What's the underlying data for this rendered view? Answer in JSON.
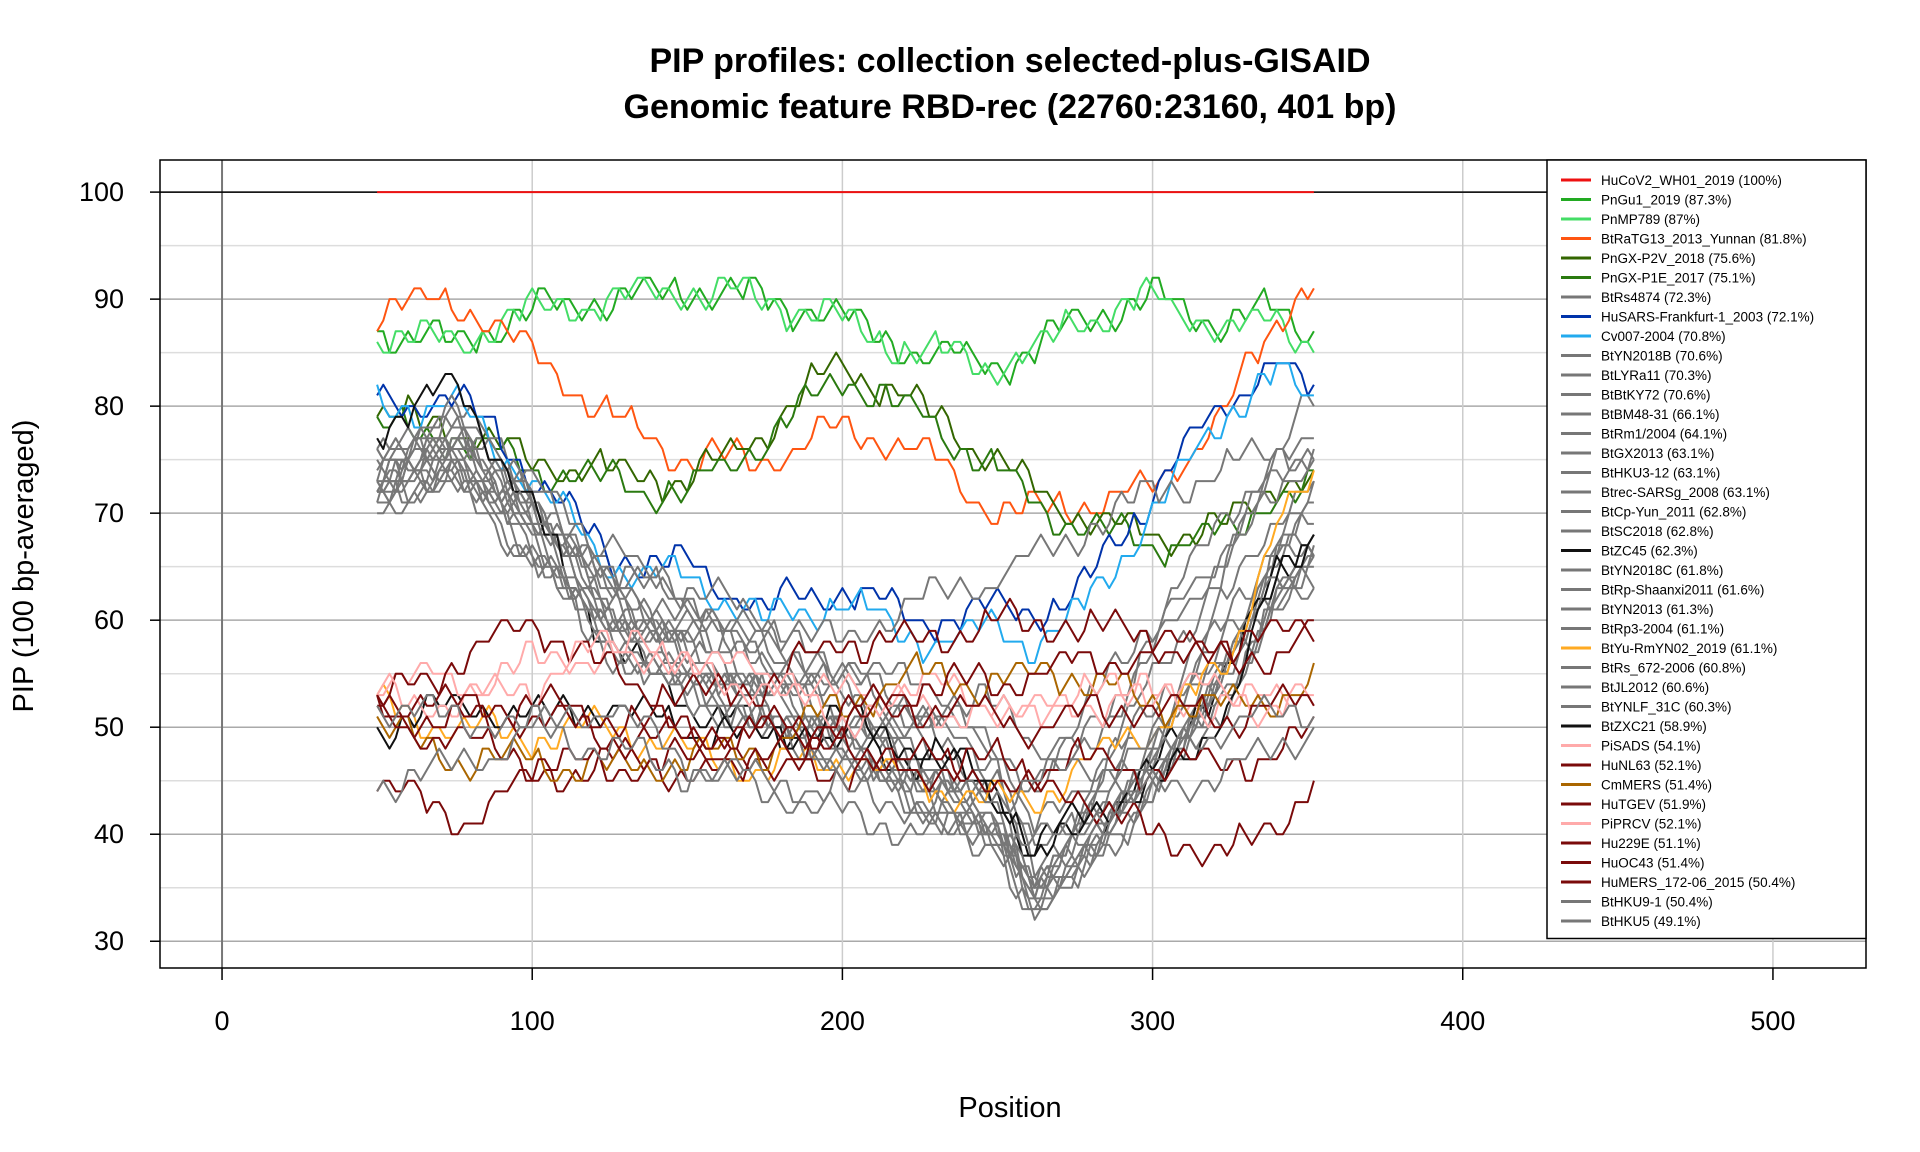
{
  "chart_data": {
    "type": "line",
    "title": "PIP profiles: collection selected-plus-GISAID",
    "subtitle": "Genomic feature RBD-rec (22760:23160, 401 bp)",
    "xlabel": "Position",
    "ylabel": "PIP (100 bp-averaged)",
    "xlim": [
      -20,
      530
    ],
    "ylim": [
      27.5,
      103
    ],
    "x_ticks": [
      0,
      100,
      200,
      300,
      400,
      500
    ],
    "y_ticks": [
      30,
      40,
      50,
      60,
      70,
      80,
      90,
      100
    ],
    "grid": true,
    "legend_position": "right",
    "x": [
      50,
      75,
      100,
      125,
      150,
      175,
      200,
      225,
      250,
      262,
      275,
      300,
      325,
      340,
      352
    ],
    "series": [
      {
        "name": "HuCoV2_WH01_2019 (100%)",
        "color": "#ee1111",
        "values": [
          100,
          100,
          100,
          100,
          100,
          100,
          100,
          100,
          100,
          100,
          100,
          100,
          100,
          100,
          100
        ]
      },
      {
        "name": "PnGu1_2019 (87.3%)",
        "color": "#22aa22",
        "values": [
          87,
          86,
          89,
          90,
          91,
          90,
          88,
          85,
          84,
          85,
          88,
          90,
          88,
          89,
          87
        ]
      },
      {
        "name": "PnMP789 (87%)",
        "color": "#44dd66",
        "values": [
          87,
          86,
          89,
          90,
          91,
          90,
          88,
          85,
          84,
          85,
          88,
          90,
          87,
          88,
          86
        ]
      },
      {
        "name": "BtRaTG13_2013_Yunnan (81.8%)",
        "color": "#ff5511",
        "values": [
          89,
          90,
          85,
          79,
          75,
          75,
          78,
          76,
          70,
          70,
          71,
          72,
          80,
          88,
          92
        ]
      },
      {
        "name": "PnGX-P2V_2018 (75.6%)",
        "color": "#336600",
        "values": [
          79,
          78,
          75,
          74,
          73,
          78,
          84,
          80,
          75,
          72,
          70,
          68,
          69,
          73,
          73
        ]
      },
      {
        "name": "PnGX-P1E_2017 (75.1%)",
        "color": "#2a7a10",
        "values": [
          78,
          77,
          74,
          73,
          72,
          77,
          83,
          79,
          74,
          71,
          69,
          67,
          68,
          72,
          72
        ]
      },
      {
        "name": "BtRs4874 (72.3%)",
        "color": "#777777",
        "values": [
          74,
          80,
          72,
          64,
          60,
          58,
          56,
          54,
          52,
          48,
          50,
          60,
          70,
          76,
          80
        ]
      },
      {
        "name": "HuSARS-Frankfurt-1_2003 (72.1%)",
        "color": "#0033aa",
        "values": [
          80,
          81,
          74,
          66,
          65,
          61,
          63,
          60,
          61,
          61,
          62,
          72,
          81,
          84,
          81
        ]
      },
      {
        "name": "Cv007-2004 (70.8%)",
        "color": "#22aaee",
        "values": [
          80,
          80,
          73,
          65,
          64,
          60,
          62,
          58,
          59,
          58,
          60,
          70,
          80,
          83,
          80
        ]
      },
      {
        "name": "BtYN2018B (70.6%)",
        "color": "#777777",
        "values": [
          76,
          79,
          73,
          65,
          62,
          58,
          55,
          52,
          48,
          45,
          48,
          58,
          68,
          74,
          78
        ]
      },
      {
        "name": "BtLYRa11 (70.3%)",
        "color": "#777777",
        "values": [
          75,
          78,
          72,
          64,
          62,
          57,
          54,
          51,
          48,
          44,
          47,
          57,
          67,
          73,
          77
        ]
      },
      {
        "name": "BtBtKY72 (70.6%)",
        "color": "#777777",
        "values": [
          72,
          76,
          70,
          62,
          58,
          56,
          52,
          50,
          47,
          40,
          44,
          54,
          66,
          72,
          76
        ]
      },
      {
        "name": "BtBM48-31 (66.1%)",
        "color": "#777777",
        "values": [
          71,
          74,
          70,
          66,
          63,
          60,
          58,
          62,
          64,
          66,
          68,
          72,
          74,
          76,
          75
        ]
      },
      {
        "name": "BtRm1/2004 (64.1%)",
        "color": "#777777",
        "values": [
          73,
          77,
          71,
          63,
          60,
          57,
          54,
          50,
          45,
          38,
          42,
          52,
          62,
          70,
          73
        ]
      },
      {
        "name": "BtGX2013 (63.1%)",
        "color": "#777777",
        "values": [
          75,
          78,
          72,
          62,
          58,
          55,
          52,
          48,
          44,
          37,
          41,
          50,
          60,
          68,
          71
        ]
      },
      {
        "name": "BtHKU3-12 (63.1%)",
        "color": "#777777",
        "values": [
          74,
          77,
          71,
          62,
          58,
          54,
          51,
          47,
          43,
          36,
          40,
          49,
          59,
          67,
          70
        ]
      },
      {
        "name": "Btrec-SARSg_2008 (63.1%)",
        "color": "#777777",
        "values": [
          73,
          76,
          70,
          61,
          57,
          54,
          50,
          46,
          42,
          36,
          39,
          48,
          58,
          66,
          69
        ]
      },
      {
        "name": "BtCp-Yun_2011 (62.8%)",
        "color": "#777777",
        "values": [
          72,
          76,
          69,
          61,
          57,
          53,
          50,
          46,
          42,
          35,
          39,
          48,
          58,
          65,
          68
        ]
      },
      {
        "name": "BtSC2018 (62.8%)",
        "color": "#777777",
        "values": [
          74,
          77,
          70,
          60,
          56,
          53,
          50,
          46,
          41,
          35,
          38,
          47,
          57,
          65,
          68
        ]
      },
      {
        "name": "BtZC45 (62.3%)",
        "color": "#111111",
        "values": [
          78,
          82,
          70,
          58,
          52,
          50,
          48,
          47,
          44,
          37,
          40,
          46,
          56,
          64,
          68
        ]
      },
      {
        "name": "BtYN2018C (61.8%)",
        "color": "#777777",
        "values": [
          73,
          76,
          69,
          60,
          56,
          52,
          49,
          45,
          41,
          34,
          38,
          46,
          56,
          64,
          67
        ]
      },
      {
        "name": "BtRp-Shaanxi2011 (61.6%)",
        "color": "#777777",
        "values": [
          72,
          75,
          68,
          59,
          55,
          52,
          49,
          45,
          41,
          34,
          37,
          46,
          56,
          63,
          66
        ]
      },
      {
        "name": "BtYN2013 (61.3%)",
        "color": "#777777",
        "values": [
          73,
          75,
          68,
          59,
          55,
          51,
          48,
          44,
          40,
          34,
          37,
          45,
          55,
          63,
          66
        ]
      },
      {
        "name": "BtRp3-2004 (61.1%)",
        "color": "#777777",
        "values": [
          72,
          74,
          67,
          58,
          54,
          51,
          48,
          44,
          40,
          33,
          37,
          45,
          55,
          62,
          65
        ]
      },
      {
        "name": "BtYu-RmYN02_2019 (61.1%)",
        "color": "#ffaa22",
        "values": [
          52,
          50,
          49,
          50,
          48,
          46,
          47,
          45,
          43,
          43,
          46,
          50,
          56,
          70,
          72
        ]
      },
      {
        "name": "BtRs_672-2006 (60.8%)",
        "color": "#777777",
        "values": [
          71,
          74,
          67,
          58,
          54,
          50,
          47,
          43,
          40,
          34,
          37,
          45,
          54,
          62,
          65
        ]
      },
      {
        "name": "BtJL2012 (60.6%)",
        "color": "#777777",
        "values": [
          72,
          74,
          66,
          58,
          54,
          50,
          47,
          43,
          39,
          33,
          36,
          44,
          54,
          62,
          64
        ]
      },
      {
        "name": "BtYNLF_31C (60.3%)",
        "color": "#777777",
        "values": [
          71,
          73,
          66,
          57,
          53,
          50,
          47,
          43,
          39,
          33,
          36,
          44,
          53,
          61,
          64
        ]
      },
      {
        "name": "BtZXC21 (58.9%)",
        "color": "#111111",
        "values": [
          50,
          52,
          51,
          52,
          50,
          49,
          51,
          48,
          45,
          38,
          42,
          44,
          52,
          64,
          68
        ]
      },
      {
        "name": "PiSADS (54.1%)",
        "color": "#ffaaaa",
        "values": [
          55,
          54,
          56,
          57,
          57,
          55,
          53,
          54,
          52,
          51,
          52,
          53,
          52,
          53,
          54
        ]
      },
      {
        "name": "HuNL63 (52.1%)",
        "color": "#7a0a0a",
        "values": [
          45,
          41,
          45,
          47,
          46,
          47,
          48,
          47,
          45,
          44,
          44,
          40,
          38,
          41,
          45
        ]
      },
      {
        "name": "CmMERS (51.4%)",
        "color": "#aa6600",
        "values": [
          50,
          47,
          47,
          46,
          47,
          48,
          52,
          55,
          54,
          55,
          55,
          52,
          52,
          53,
          54
        ]
      },
      {
        "name": "HuTGEV (51.9%)",
        "color": "#7a0a0a",
        "values": [
          52,
          56,
          60,
          55,
          53,
          54,
          58,
          58,
          60,
          59,
          60,
          58,
          56,
          57,
          59
        ]
      },
      {
        "name": "PiPRCV (52.1%)",
        "color": "#ffaaaa",
        "values": [
          53,
          52,
          54,
          58,
          55,
          54,
          51,
          52,
          51,
          52,
          53,
          54,
          53,
          52,
          53
        ]
      },
      {
        "name": "Hu229E (51.1%)",
        "color": "#7a0a0a",
        "values": [
          51,
          49,
          47,
          46,
          47,
          47,
          46,
          46,
          47,
          46,
          47,
          46,
          47,
          47,
          50
        ]
      },
      {
        "name": "HuOC43 (51.4%)",
        "color": "#7a0a0a",
        "values": [
          52,
          50,
          51,
          49,
          49,
          50,
          50,
          52,
          51,
          50,
          51,
          52,
          51,
          52,
          52
        ]
      },
      {
        "name": "HuMERS_172-06_2015 (50.4%)",
        "color": "#7a0a0a",
        "values": [
          53,
          52,
          52,
          51,
          50,
          49,
          51,
          54,
          54,
          55,
          56,
          57,
          58,
          58,
          60
        ]
      },
      {
        "name": "BtHKU9-1 (50.4%)",
        "color": "#777777",
        "values": [
          45,
          46,
          50,
          52,
          47,
          45,
          44,
          43,
          44,
          45,
          46,
          48,
          50,
          51,
          52
        ]
      },
      {
        "name": "BtHKU5 (49.1%)",
        "color": "#777777",
        "values": [
          52,
          51,
          50,
          48,
          46,
          44,
          42,
          40,
          39,
          39,
          41,
          44,
          46,
          48,
          50
        ]
      }
    ]
  }
}
